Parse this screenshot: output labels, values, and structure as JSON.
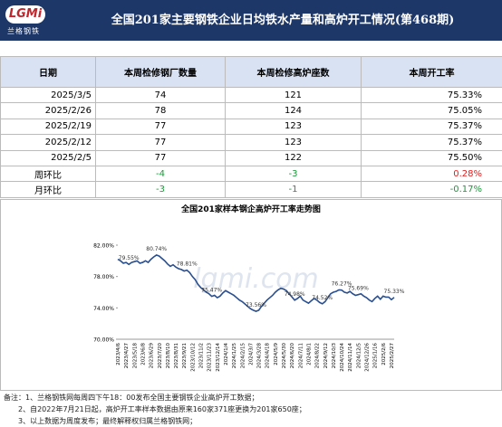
{
  "header": {
    "logo": "LGMi",
    "logo_sub": "兰格钢铁",
    "title": "全国201家主要钢铁企业日均铁水产量和高炉开工情况(第468期)"
  },
  "table": {
    "columns": [
      "日期",
      "本周检修钢厂数量",
      "本周检修高炉座数",
      "本周开工率"
    ],
    "rows": [
      [
        "2025/3/5",
        "74",
        "121",
        "75.33%"
      ],
      [
        "2025/2/26",
        "78",
        "124",
        "75.05%"
      ],
      [
        "2025/2/19",
        "77",
        "123",
        "75.37%"
      ],
      [
        "2025/2/12",
        "77",
        "123",
        "75.37%"
      ],
      [
        "2025/2/5",
        "77",
        "122",
        "75.50%"
      ],
      [
        "周环比",
        "-4",
        "-3",
        "0.28%"
      ],
      [
        "月环比",
        "-3",
        "-1",
        "-0.17%"
      ]
    ]
  },
  "chart_data": {
    "type": "line",
    "title": "全国201家样本钢企高炉开工率走势图",
    "watermark": "lgmi.com",
    "categories": [
      "2023/4/6",
      null,
      null,
      "2023/4/27",
      null,
      null,
      "2023/5/18",
      null,
      null,
      "2023/6/8",
      null,
      null,
      "2023/6/29",
      null,
      null,
      "2023/7/20",
      null,
      null,
      "2023/8/10",
      null,
      null,
      "2023/8/31",
      null,
      null,
      "2023/9/21",
      null,
      null,
      "2023/10/12",
      null,
      null,
      "2023/11/2",
      null,
      null,
      "2023/11/23",
      null,
      null,
      "2023/12/14",
      null,
      null,
      "2024/1/4",
      null,
      null,
      "2024/1/25",
      null,
      null,
      "2024/2/15",
      null,
      null,
      "2024/3/7",
      null,
      null,
      "2024/3/28",
      null,
      null,
      "2024/4/18",
      null,
      null,
      "2024/5/9",
      null,
      null,
      "2024/5/30",
      null,
      null,
      "2024/6/20",
      null,
      null,
      "2024/7/11",
      null,
      null,
      "2024/8/1",
      null,
      null,
      "2024/8/22",
      null,
      null,
      "2024/9/12",
      null,
      null,
      "2024/10/3",
      null,
      null,
      "2024/10/24",
      null,
      null,
      "2024/11/14",
      null,
      null,
      "2024/12/5",
      null,
      null,
      "2024/12/26",
      null,
      null,
      "2025/1/16",
      null,
      null,
      "2025/2/6",
      null,
      null,
      "2025/2/27",
      null
    ],
    "values": [
      80.2,
      80.0,
      79.7,
      79.8,
      79.55,
      79.8,
      79.9,
      80.0,
      79.7,
      79.8,
      80.0,
      79.8,
      80.2,
      80.5,
      80.74,
      80.6,
      80.3,
      80.0,
      79.6,
      79.3,
      79.5,
      79.2,
      79.0,
      78.9,
      78.7,
      78.81,
      78.5,
      78.0,
      77.6,
      77.0,
      76.6,
      76.3,
      76.0,
      75.8,
      75.47,
      75.6,
      75.3,
      75.5,
      75.9,
      76.2,
      76.0,
      75.8,
      75.6,
      75.3,
      75.0,
      74.8,
      74.5,
      74.2,
      73.9,
      73.7,
      73.56,
      73.7,
      74.2,
      74.6,
      75.0,
      75.3,
      75.6,
      76.0,
      76.3,
      76.5,
      76.4,
      76.2,
      75.8,
      75.4,
      74.98,
      75.2,
      75.5,
      75.0,
      74.8,
      74.6,
      74.9,
      75.2,
      75.0,
      74.7,
      74.52,
      74.8,
      75.3,
      75.8,
      76.0,
      76.1,
      76.3,
      76.27,
      76.0,
      75.9,
      76.1,
      75.8,
      75.6,
      75.69,
      75.8,
      75.5,
      75.3,
      75.0,
      74.8,
      75.2,
      75.5,
      75.1,
      75.5,
      75.37,
      75.37,
      75.05,
      75.33
    ],
    "value_labels": [
      null,
      null,
      null,
      null,
      "79.55%",
      null,
      null,
      null,
      null,
      null,
      null,
      null,
      null,
      null,
      "80.74%",
      null,
      null,
      null,
      null,
      null,
      null,
      null,
      null,
      null,
      null,
      "78.81%",
      null,
      null,
      null,
      null,
      null,
      null,
      null,
      null,
      "75.47%",
      null,
      null,
      null,
      null,
      null,
      null,
      null,
      null,
      null,
      null,
      null,
      null,
      null,
      null,
      null,
      "73.56%",
      null,
      null,
      null,
      null,
      null,
      null,
      null,
      null,
      null,
      null,
      null,
      null,
      null,
      "74.98%",
      null,
      null,
      null,
      null,
      null,
      null,
      null,
      null,
      null,
      "74.52%",
      null,
      null,
      null,
      null,
      null,
      null,
      "76.27%",
      null,
      null,
      null,
      null,
      null,
      "75.69%",
      null,
      null,
      null,
      null,
      null,
      null,
      null,
      null,
      null,
      null,
      null,
      null,
      "75.33%"
    ],
    "color": "#2a4f8f",
    "ylim": [
      70,
      82
    ],
    "yticks": [
      {
        "value": 70,
        "label": "70.00%"
      },
      {
        "value": 74,
        "label": "74.00%"
      },
      {
        "value": 78,
        "label": "78.00%"
      },
      {
        "value": 82,
        "label": "82.00%"
      }
    ]
  },
  "notes": [
    "备注：1、兰格钢铁网每周四下午18：00发布全国主要钢铁企业高炉开工数据；",
    "2、自2022年7月21日起，高炉开工率样本数据由原来160家371座更换为201家650座；",
    "3、以上数据为周度发布；最终解释权归属兰格钢铁网；"
  ]
}
